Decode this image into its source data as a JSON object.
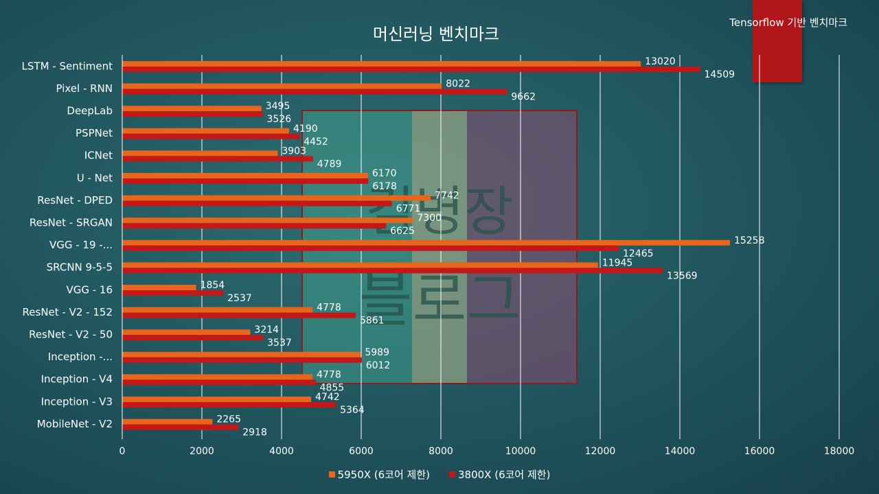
{
  "header": {
    "title": "머신러닝 벤치마크",
    "tag": "Tensorflow 기반 벤치마크"
  },
  "watermark": {
    "line1": "김병장",
    "line2": "블로그"
  },
  "colors": {
    "series1": "#e8661c",
    "series2": "#c41818",
    "grid": "#ffffff",
    "text": "#ffffff",
    "banner": "#b0151a"
  },
  "chart_data": {
    "type": "bar",
    "orientation": "horizontal",
    "title": "머신러닝 벤치마크",
    "xlim": [
      0,
      18000
    ],
    "xticks": [
      0,
      2000,
      4000,
      6000,
      8000,
      10000,
      12000,
      14000,
      16000,
      18000
    ],
    "grid": "vertical",
    "legend_position": "bottom",
    "categories": [
      "LSTM - Sentiment",
      "Pixel - RNN",
      "DeepLab",
      "PSPNet",
      "ICNet",
      "U - Net",
      "ResNet - DPED",
      "ResNet - SRGAN",
      "VGG - 19 -...",
      "SRCNN 9-5-5",
      "VGG - 16",
      "ResNet - V2 - 152",
      "ResNet - V2 - 50",
      "Inception -...",
      "Inception - V4",
      "Inception - V3",
      "MobileNet - V2"
    ],
    "series": [
      {
        "name": "5950X (6코어 제한)",
        "values": [
          13020,
          8022,
          3495,
          4190,
          3903,
          6170,
          7742,
          7300,
          15258,
          11945,
          1854,
          4778,
          3214,
          5989,
          4778,
          4742,
          2265
        ]
      },
      {
        "name": "3800X (6코어 제한)",
        "values": [
          14509,
          9662,
          3526,
          4452,
          4789,
          6178,
          6771,
          6625,
          12465,
          13569,
          2537,
          5861,
          3537,
          6012,
          4855,
          5364,
          2918
        ]
      }
    ]
  }
}
